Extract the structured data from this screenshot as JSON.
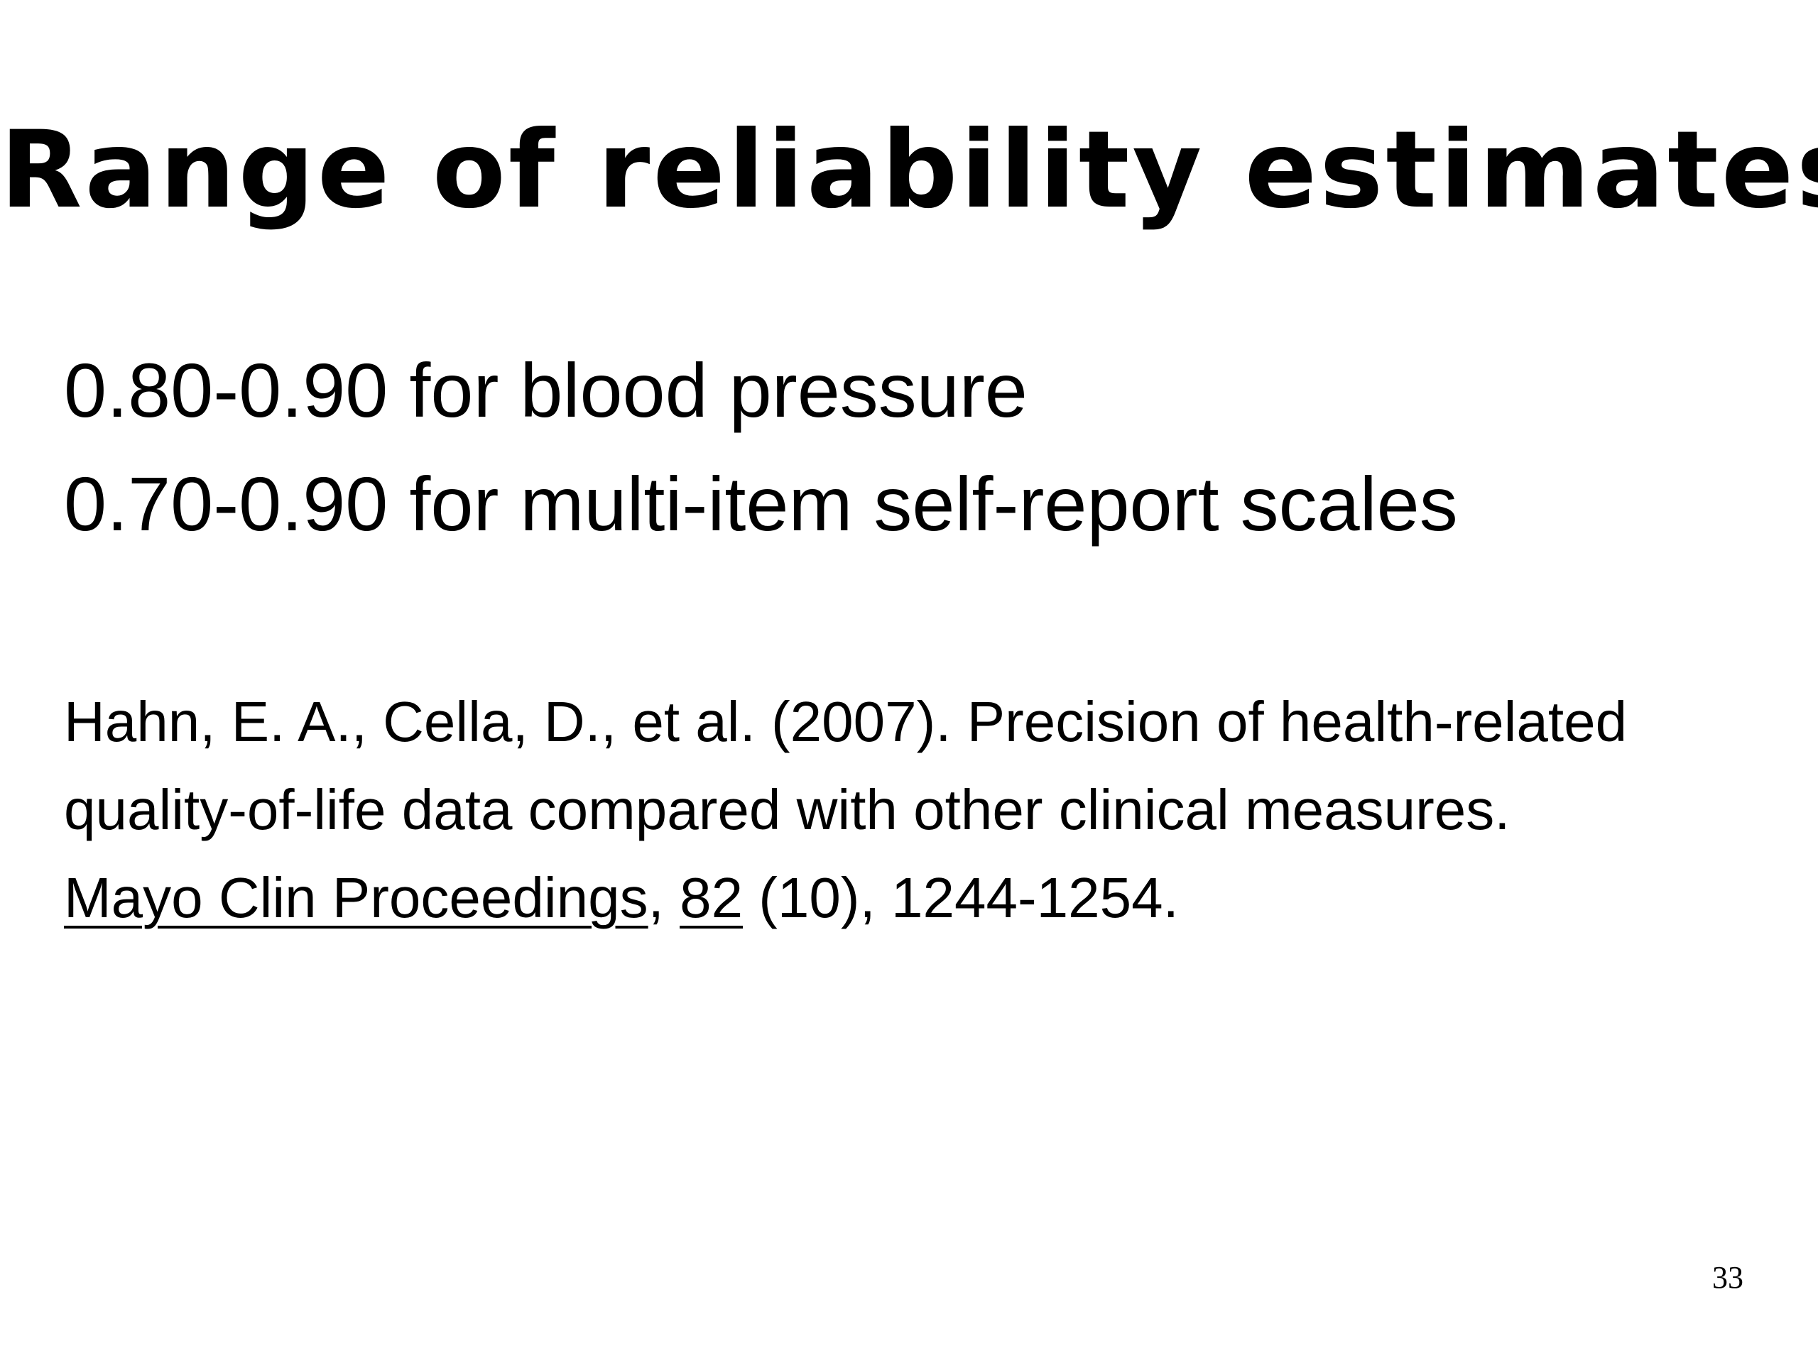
{
  "slide": {
    "title": "Range of reliability estimates",
    "bullets": [
      "0.80-0.90 for blood pressure",
      "0.70-0.90 for multi-item self-report scales"
    ],
    "citation": {
      "line1": "Hahn, E. A., Cella, D., et al.  (2007).  Precision of health-related",
      "line2": "quality-of-life data compared with other clinical measures.",
      "journal": "Mayo Clin Proceedings",
      "sep1": ", ",
      "volume": "82",
      "rest": " (10), 1244-1254."
    },
    "page_number": "33"
  }
}
